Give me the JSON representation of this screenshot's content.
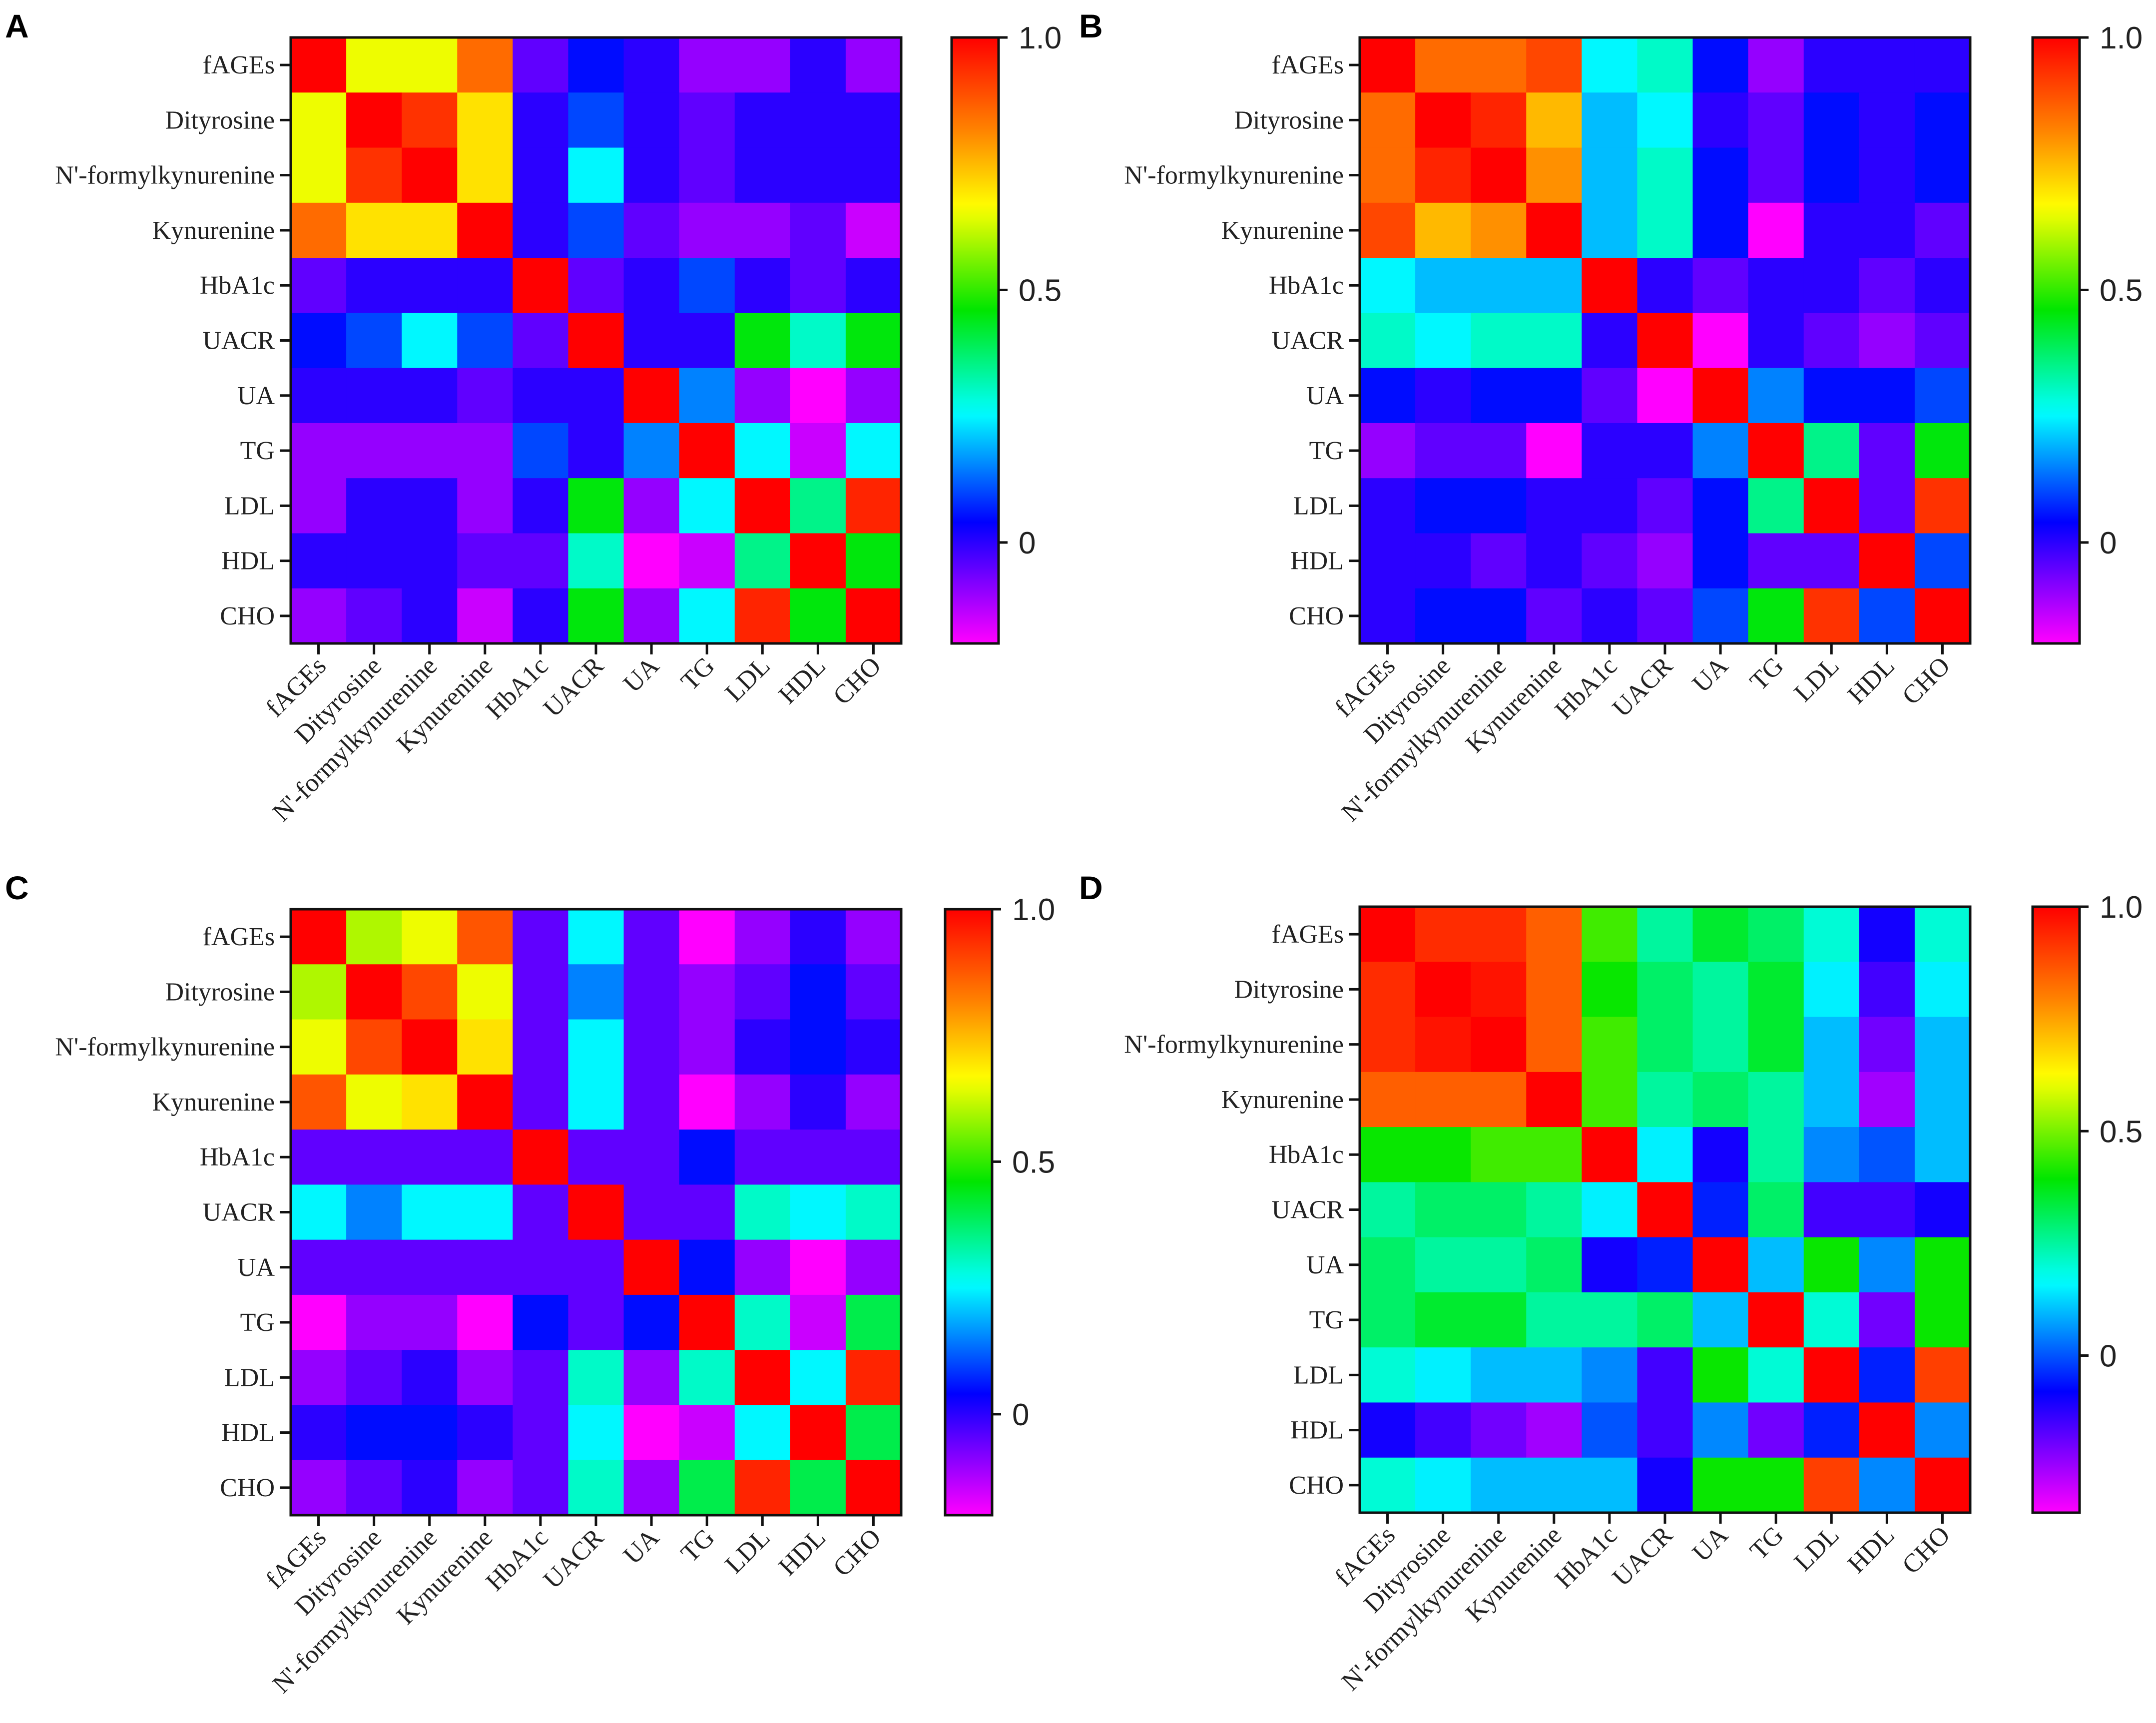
{
  "figure": {
    "labels": [
      "fAGEs",
      "Dityrosine",
      "N'-formylkynurenine",
      "Kynurenine",
      "HbA1c",
      "UACR",
      "UA",
      "TG",
      "LDL",
      "HDL",
      "CHO"
    ]
  },
  "chart_data": [
    {
      "type": "heatmap",
      "panel": "A",
      "title": "",
      "rows": [
        "fAGEs",
        "Dityrosine",
        "N'-formylkynurenine",
        "Kynurenine",
        "HbA1c",
        "UACR",
        "UA",
        "TG",
        "LDL",
        "HDL",
        "CHO"
      ],
      "columns": [
        "fAGEs",
        "Dityrosine",
        "N'-formylkynurenine",
        "Kynurenine",
        "HbA1c",
        "UACR",
        "UA",
        "TG",
        "LDL",
        "HDL",
        "CHO"
      ],
      "color_range": [
        -0.2,
        1.0
      ],
      "colorbar_ticks": [
        "1.0",
        "0.5",
        "0"
      ],
      "colorbar_tick_values": [
        1.0,
        0.5,
        0
      ],
      "values": [
        [
          1.0,
          0.65,
          0.65,
          0.85,
          -0.05,
          0.05,
          0.0,
          -0.1,
          -0.1,
          0.0,
          -0.1
        ],
        [
          0.65,
          1.0,
          0.93,
          0.7,
          0.0,
          0.1,
          0.0,
          -0.05,
          0.0,
          0.0,
          0.0
        ],
        [
          0.65,
          0.93,
          1.0,
          0.7,
          0.0,
          0.25,
          0.0,
          -0.05,
          0.0,
          0.0,
          0.0
        ],
        [
          0.85,
          0.7,
          0.7,
          1.0,
          0.0,
          0.1,
          -0.05,
          -0.1,
          -0.1,
          -0.05,
          -0.15
        ],
        [
          -0.05,
          0.0,
          0.0,
          0.0,
          1.0,
          -0.05,
          0.0,
          0.1,
          0.0,
          -0.05,
          0.0
        ],
        [
          0.05,
          0.1,
          0.25,
          0.1,
          -0.05,
          1.0,
          0.0,
          0.0,
          0.45,
          0.3,
          0.45
        ],
        [
          0.0,
          0.0,
          0.0,
          -0.05,
          0.0,
          0.0,
          1.0,
          0.15,
          -0.1,
          -0.2,
          -0.1
        ],
        [
          -0.1,
          -0.1,
          -0.1,
          -0.1,
          0.1,
          0.0,
          0.15,
          1.0,
          0.25,
          -0.15,
          0.25
        ],
        [
          -0.1,
          0.0,
          0.0,
          -0.1,
          0.0,
          0.45,
          -0.1,
          0.25,
          1.0,
          0.35,
          0.95
        ],
        [
          0.0,
          0.0,
          0.0,
          -0.05,
          -0.05,
          0.3,
          -0.2,
          -0.15,
          0.35,
          1.0,
          0.45
        ],
        [
          -0.1,
          -0.05,
          0.0,
          -0.15,
          0.0,
          0.45,
          -0.1,
          0.25,
          0.95,
          0.45,
          1.0
        ]
      ]
    },
    {
      "type": "heatmap",
      "panel": "B",
      "title": "",
      "rows": [
        "fAGEs",
        "Dityrosine",
        "N'-formylkynurenine",
        "Kynurenine",
        "HbA1c",
        "UACR",
        "UA",
        "TG",
        "LDL",
        "HDL",
        "CHO"
      ],
      "columns": [
        "fAGEs",
        "Dityrosine",
        "N'-formylkynurenine",
        "Kynurenine",
        "HbA1c",
        "UACR",
        "UA",
        "TG",
        "LDL",
        "HDL",
        "CHO"
      ],
      "color_range": [
        -0.2,
        1.0
      ],
      "colorbar_ticks": [
        "1.0",
        "0.5",
        "0"
      ],
      "colorbar_tick_values": [
        1.0,
        0.5,
        0
      ],
      "values": [
        [
          1.0,
          0.85,
          0.85,
          0.9,
          0.25,
          0.3,
          0.05,
          -0.1,
          0.0,
          0.0,
          0.0
        ],
        [
          0.85,
          1.0,
          0.95,
          0.75,
          0.2,
          0.25,
          0.0,
          -0.05,
          0.05,
          0.0,
          0.05
        ],
        [
          0.85,
          0.95,
          1.0,
          0.8,
          0.2,
          0.3,
          0.05,
          -0.05,
          0.05,
          0.0,
          0.05
        ],
        [
          0.9,
          0.75,
          0.8,
          1.0,
          0.2,
          0.3,
          0.05,
          -0.2,
          0.0,
          0.0,
          -0.05
        ],
        [
          0.25,
          0.2,
          0.2,
          0.2,
          1.0,
          0.0,
          -0.05,
          0.0,
          0.0,
          -0.05,
          0.0
        ],
        [
          0.3,
          0.25,
          0.3,
          0.3,
          0.0,
          1.0,
          -0.2,
          0.0,
          -0.05,
          -0.1,
          -0.05
        ],
        [
          0.05,
          0.0,
          0.05,
          0.05,
          -0.05,
          -0.2,
          1.0,
          0.15,
          0.05,
          0.05,
          0.1
        ],
        [
          -0.1,
          -0.05,
          -0.05,
          -0.2,
          0.0,
          0.0,
          0.15,
          1.0,
          0.35,
          -0.05,
          0.45
        ],
        [
          0.0,
          0.05,
          0.05,
          0.0,
          0.0,
          -0.05,
          0.05,
          0.35,
          1.0,
          -0.05,
          0.93
        ],
        [
          0.0,
          0.0,
          -0.05,
          0.0,
          -0.05,
          -0.1,
          0.05,
          -0.05,
          -0.05,
          1.0,
          0.1
        ],
        [
          0.0,
          0.05,
          0.05,
          -0.05,
          0.0,
          -0.05,
          0.1,
          0.45,
          0.93,
          0.1,
          1.0
        ]
      ]
    },
    {
      "type": "heatmap",
      "panel": "C",
      "title": "",
      "rows": [
        "fAGEs",
        "Dityrosine",
        "N'-formylkynurenine",
        "Kynurenine",
        "HbA1c",
        "UACR",
        "UA",
        "TG",
        "LDL",
        "HDL",
        "CHO"
      ],
      "columns": [
        "fAGEs",
        "Dityrosine",
        "N'-formylkynurenine",
        "Kynurenine",
        "HbA1c",
        "UACR",
        "UA",
        "TG",
        "LDL",
        "HDL",
        "CHO"
      ],
      "color_range": [
        -0.2,
        1.0
      ],
      "colorbar_ticks": [
        "1.0",
        "0.5",
        "0"
      ],
      "colorbar_tick_values": [
        1.0,
        0.5,
        0
      ],
      "values": [
        [
          1.0,
          0.6,
          0.65,
          0.88,
          -0.05,
          0.25,
          -0.05,
          -0.2,
          -0.1,
          0.0,
          -0.1
        ],
        [
          0.6,
          1.0,
          0.9,
          0.65,
          -0.05,
          0.15,
          -0.05,
          -0.1,
          -0.05,
          0.05,
          -0.05
        ],
        [
          0.65,
          0.9,
          1.0,
          0.7,
          -0.05,
          0.25,
          -0.05,
          -0.1,
          0.0,
          0.05,
          0.0
        ],
        [
          0.88,
          0.65,
          0.7,
          1.0,
          -0.05,
          0.25,
          -0.05,
          -0.2,
          -0.1,
          0.0,
          -0.1
        ],
        [
          -0.05,
          -0.05,
          -0.05,
          -0.05,
          1.0,
          -0.05,
          -0.05,
          0.05,
          -0.05,
          -0.05,
          -0.05
        ],
        [
          0.25,
          0.15,
          0.25,
          0.25,
          -0.05,
          1.0,
          -0.05,
          -0.05,
          0.3,
          0.25,
          0.3
        ],
        [
          -0.05,
          -0.05,
          -0.05,
          -0.05,
          -0.05,
          -0.05,
          1.0,
          0.05,
          -0.1,
          -0.2,
          -0.1
        ],
        [
          -0.2,
          -0.1,
          -0.1,
          -0.2,
          0.05,
          -0.05,
          0.05,
          1.0,
          0.3,
          -0.15,
          0.4
        ],
        [
          -0.1,
          -0.05,
          0.0,
          -0.1,
          -0.05,
          0.3,
          -0.1,
          0.3,
          1.0,
          0.25,
          0.95
        ],
        [
          0.0,
          0.05,
          0.05,
          0.0,
          -0.05,
          0.25,
          -0.2,
          -0.15,
          0.25,
          1.0,
          0.4
        ],
        [
          -0.1,
          -0.05,
          0.0,
          -0.1,
          -0.05,
          0.3,
          -0.1,
          0.4,
          0.95,
          0.4,
          1.0
        ]
      ]
    },
    {
      "type": "heatmap",
      "panel": "D",
      "title": "",
      "rows": [
        "fAGEs",
        "Dityrosine",
        "N'-formylkynurenine",
        "Kynurenine",
        "HbA1c",
        "UACR",
        "UA",
        "TG",
        "LDL",
        "HDL",
        "CHO"
      ],
      "columns": [
        "fAGEs",
        "Dityrosine",
        "N'-formylkynurenine",
        "Kynurenine",
        "HbA1c",
        "UACR",
        "UA",
        "TG",
        "LDL",
        "HDL",
        "CHO"
      ],
      "color_range": [
        -0.35,
        1.0
      ],
      "colorbar_ticks": [
        "1.0",
        "0.5",
        "0"
      ],
      "colorbar_tick_values": [
        1.0,
        0.5,
        0
      ],
      "values": [
        [
          1.0,
          0.93,
          0.93,
          0.85,
          0.45,
          0.25,
          0.35,
          0.3,
          0.2,
          -0.1,
          0.2
        ],
        [
          0.93,
          1.0,
          0.97,
          0.85,
          0.4,
          0.3,
          0.25,
          0.35,
          0.15,
          -0.15,
          0.15
        ],
        [
          0.93,
          0.97,
          1.0,
          0.85,
          0.45,
          0.3,
          0.25,
          0.35,
          0.1,
          -0.2,
          0.1
        ],
        [
          0.85,
          0.85,
          0.85,
          1.0,
          0.45,
          0.25,
          0.3,
          0.25,
          0.1,
          -0.25,
          0.1
        ],
        [
          0.4,
          0.4,
          0.45,
          0.45,
          1.0,
          0.15,
          -0.1,
          0.25,
          0.05,
          0.0,
          0.1
        ],
        [
          0.25,
          0.3,
          0.3,
          0.25,
          0.15,
          1.0,
          -0.05,
          0.3,
          -0.15,
          -0.15,
          -0.1
        ],
        [
          0.3,
          0.25,
          0.25,
          0.3,
          -0.1,
          -0.05,
          1.0,
          0.1,
          0.4,
          0.05,
          0.4
        ],
        [
          0.3,
          0.35,
          0.35,
          0.25,
          0.25,
          0.3,
          0.1,
          1.0,
          0.2,
          -0.2,
          0.4
        ],
        [
          0.2,
          0.15,
          0.1,
          0.1,
          0.05,
          -0.15,
          0.4,
          0.2,
          1.0,
          -0.05,
          0.9
        ],
        [
          -0.1,
          -0.15,
          -0.2,
          -0.25,
          0.0,
          -0.15,
          0.05,
          -0.2,
          -0.05,
          1.0,
          0.05
        ],
        [
          0.2,
          0.15,
          0.1,
          0.1,
          0.1,
          -0.1,
          0.4,
          0.4,
          0.9,
          0.05,
          1.0
        ]
      ]
    }
  ]
}
